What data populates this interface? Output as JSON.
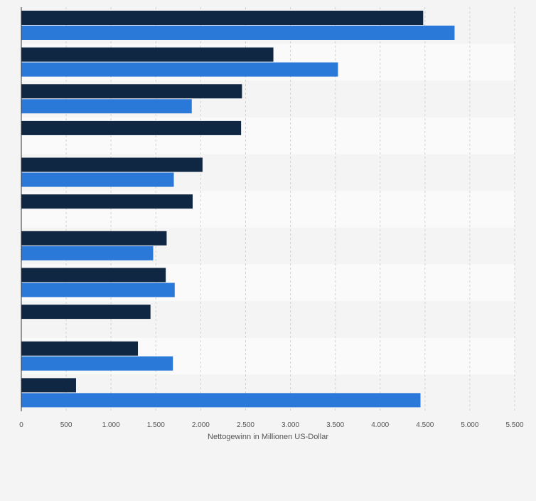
{
  "chart_data": {
    "type": "bar",
    "orientation": "horizontal",
    "title": "",
    "xlabel": "Nettogewinn in Millionen US-Dollar",
    "ylabel": "",
    "xlim": [
      0,
      5500
    ],
    "xticks": [
      0,
      500,
      1000,
      1500,
      2000,
      2500,
      3000,
      3500,
      4000,
      4500,
      5000,
      5500
    ],
    "xtick_labels": [
      "0",
      "500",
      "1.000",
      "1.500",
      "2.000",
      "2.500",
      "3.000",
      "3.500",
      "4.000",
      "4.500",
      "5.000",
      "5.500"
    ],
    "grid": true,
    "legend": "none",
    "categories": [
      "",
      "",
      "",
      "",
      "",
      "",
      "",
      "",
      "",
      "",
      ""
    ],
    "series": [
      {
        "color": "#0f2742",
        "values": [
          4480,
          2810,
          2460,
          2450,
          2020,
          1910,
          1620,
          1610,
          1440,
          1300,
          610
        ]
      },
      {
        "color": "#2a78d8",
        "values": [
          4830,
          3530,
          1900,
          null,
          1700,
          null,
          1470,
          1710,
          null,
          1690,
          4450
        ]
      }
    ]
  }
}
